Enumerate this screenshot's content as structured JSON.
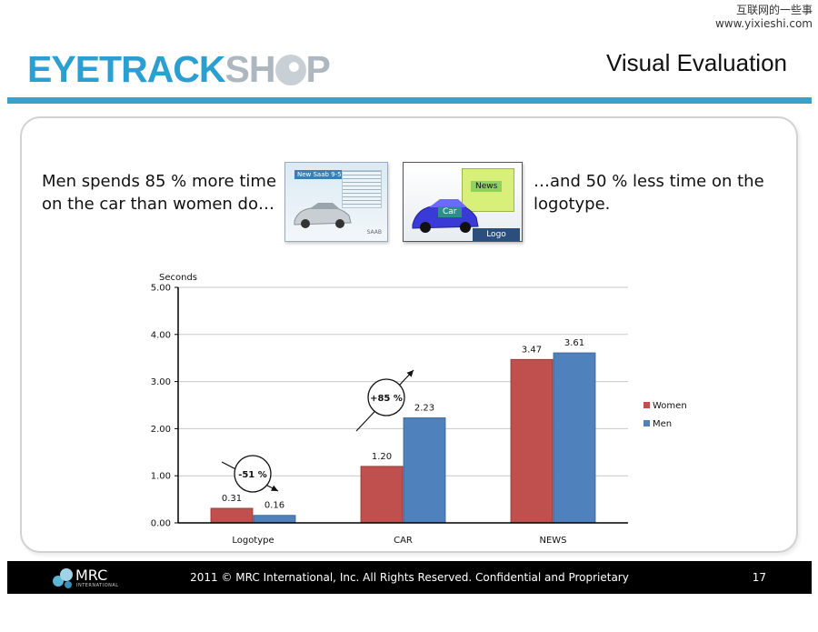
{
  "watermark": {
    "line1": "互联网的一些事",
    "line2": "www.yixieshi.com"
  },
  "header": {
    "logo_part1": "EYETRACKSH",
    "logo_part2": "P",
    "title": "Visual Evaluation"
  },
  "text": {
    "left": "Men spends 85 % more time on the car than women do…",
    "right": "…and 50 % less time on the logotype."
  },
  "thumbnails": {
    "ad_headline": "New Saab 9-5",
    "ad_brand": "SAAB",
    "aoi_news": "News",
    "aoi_car": "Car",
    "aoi_logo": "Logo"
  },
  "colors": {
    "women": "#c0504d",
    "men": "#4f81bd",
    "accent": "#3aa0cc"
  },
  "chart_data": {
    "type": "bar",
    "ylabel": "Seconds",
    "ylim": [
      0,
      5
    ],
    "yticks": [
      "0.00",
      "1.00",
      "2.00",
      "3.00",
      "4.00",
      "5.00"
    ],
    "categories": [
      "Logotype",
      "CAR",
      "NEWS"
    ],
    "series": [
      {
        "name": "Women",
        "values": [
          0.31,
          1.2,
          3.47
        ],
        "labels": [
          "0.31",
          "1.20",
          "3.47"
        ]
      },
      {
        "name": "Men",
        "values": [
          0.16,
          2.23,
          3.61
        ],
        "labels": [
          "0.16",
          "2.23",
          "3.61"
        ]
      }
    ],
    "legend_position": "right",
    "annotations": [
      {
        "text": "-51 %",
        "category": "Logotype",
        "direction": "down"
      },
      {
        "text": "+85 %",
        "category": "CAR",
        "direction": "up"
      }
    ],
    "grid": true
  },
  "footer": {
    "brand": "MRC",
    "brand_sub": "INTERNATIONAL",
    "copyright": "2011 © MRC International, Inc. All Rights Reserved. Confidential and Proprietary",
    "page": "17"
  }
}
